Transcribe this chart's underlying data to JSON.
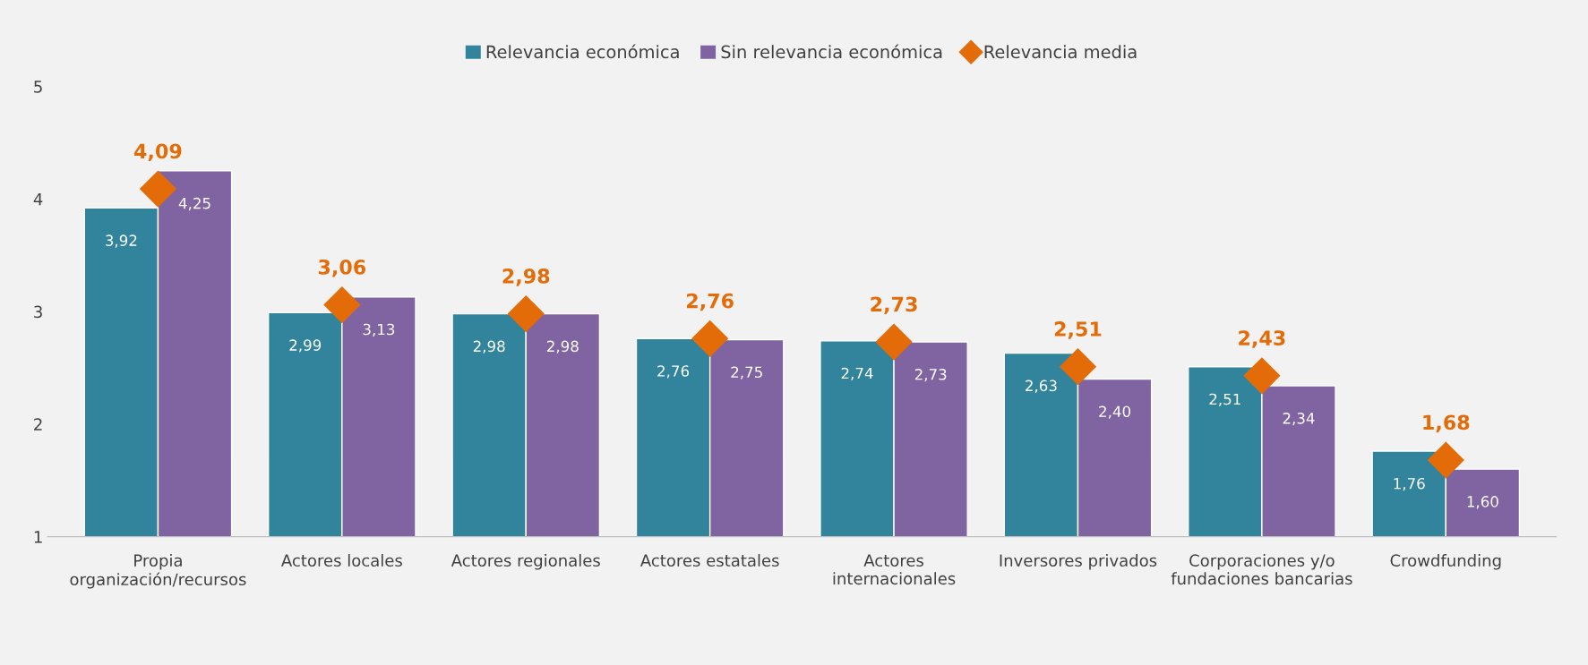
{
  "chart_data": {
    "type": "bar",
    "categories": [
      "Propia\norganización/recursos",
      "Actores locales",
      "Actores regionales",
      "Actores estatales",
      "Actores\ninternacionales",
      "Inversores privados",
      "Corporaciones y/o\nfundaciones bancarias",
      "Crowdfunding"
    ],
    "series": [
      {
        "name": "Relevancia económica",
        "color": "#31849b",
        "values": [
          3.92,
          2.99,
          2.98,
          2.76,
          2.74,
          2.63,
          2.51,
          1.76
        ],
        "value_labels": [
          "3,92",
          "2,99",
          "2,98",
          "2,76",
          "2,74",
          "2,63",
          "2,51",
          "1,76"
        ]
      },
      {
        "name": "Sin relevancia económica",
        "color": "#8064a2",
        "values": [
          4.25,
          3.13,
          2.98,
          2.75,
          2.73,
          2.4,
          2.34,
          1.6
        ],
        "value_labels": [
          "4,25",
          "3,13",
          "2,98",
          "2,75",
          "2,73",
          "2,40",
          "2,34",
          "1,60"
        ]
      },
      {
        "name": "Relevancia media",
        "type": "scatter",
        "marker": "diamond",
        "color": "#e36c09",
        "values": [
          4.09,
          3.06,
          2.98,
          2.76,
          2.73,
          2.51,
          2.43,
          1.68
        ],
        "value_labels": [
          "4,09",
          "3,06",
          "2,98",
          "2,76",
          "2,73",
          "2,51",
          "2,43",
          "1,68"
        ]
      }
    ],
    "ylim": [
      1,
      5
    ],
    "yticks": [
      1,
      2,
      3,
      4,
      5
    ],
    "grid": false,
    "legend": "top"
  }
}
